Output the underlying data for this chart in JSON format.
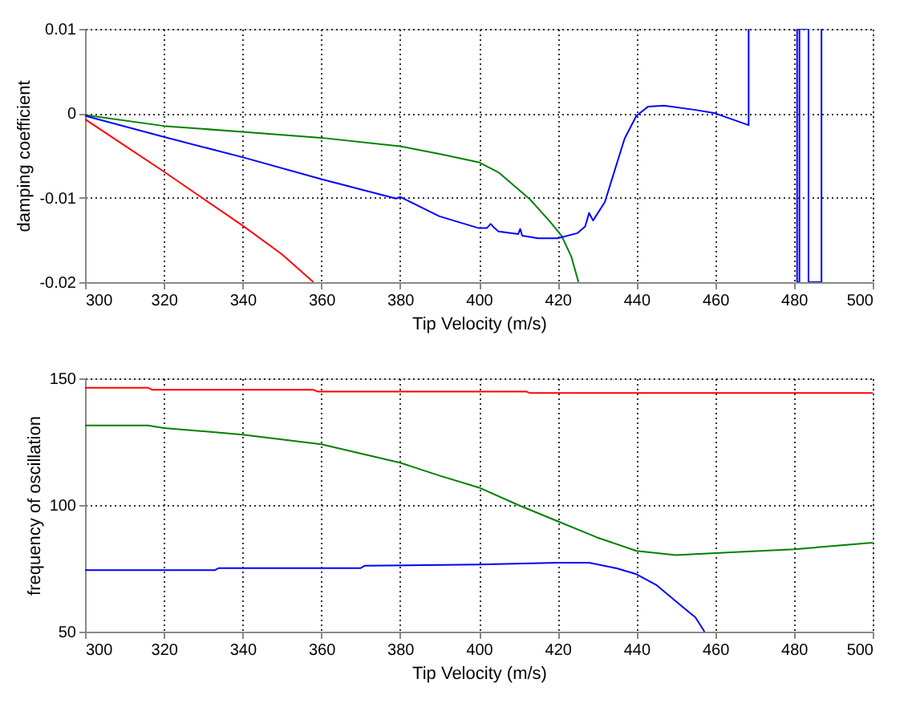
{
  "chart_data": [
    {
      "type": "line",
      "xlabel": "Tip Velocity (m/s)",
      "ylabel": "damping coefficient",
      "xlim": [
        300,
        500
      ],
      "xticks": [
        300,
        320,
        340,
        360,
        380,
        400,
        420,
        440,
        460,
        480,
        500
      ],
      "ylim": [
        -0.02,
        0.01
      ],
      "yticks": [
        -0.02,
        -0.01,
        0,
        0.01
      ],
      "grid": true,
      "legend": false,
      "marker": "none",
      "line_style": "solid",
      "series": [
        {
          "color": "#ff0000",
          "x": [
            300,
            310,
            320,
            330,
            340,
            350,
            358
          ],
          "values": [
            -0.0007,
            -0.0038,
            -0.0069,
            -0.0101,
            -0.0133,
            -0.0167,
            -0.02
          ]
        },
        {
          "color": "#008000",
          "x": [
            300,
            320,
            340,
            360,
            380,
            390,
            400,
            405,
            413,
            418,
            421,
            423.5,
            425.3
          ],
          "values": [
            -0.0002,
            -0.0015,
            -0.0022,
            -0.0029,
            -0.0039,
            -0.0048,
            -0.0058,
            -0.007,
            -0.0102,
            -0.0128,
            -0.0145,
            -0.017,
            -0.02
          ]
        },
        {
          "color": "#0000ff",
          "x": [
            300,
            320,
            340,
            360,
            379,
            380,
            390,
            400,
            402,
            403,
            404,
            405,
            410,
            410.5,
            411,
            415,
            420,
            425,
            427,
            428,
            429,
            432,
            435,
            437,
            440,
            443,
            447,
            455,
            460,
            468.5,
            468.5,
            469,
            480.8,
            480.8,
            481.4,
            481.4,
            483.7,
            483.7,
            487,
            487
          ],
          "values": [
            -0.0003,
            -0.0028,
            -0.0052,
            -0.0078,
            -0.0101,
            -0.0099,
            -0.0122,
            -0.0136,
            -0.0136,
            -0.0131,
            -0.0136,
            -0.014,
            -0.0143,
            -0.0137,
            -0.0145,
            -0.0148,
            -0.0148,
            -0.0142,
            -0.0134,
            -0.0118,
            -0.0127,
            -0.0105,
            -0.006,
            -0.003,
            -0.0003,
            0.0008,
            0.0009,
            0.0004,
            0,
            -0.0014,
            0.01,
            null,
            0.01,
            -0.02,
            -0.02,
            0.01,
            0.01,
            -0.02,
            -0.02,
            0.01
          ]
        }
      ]
    },
    {
      "type": "line",
      "xlabel": "Tip Velocity (m/s)",
      "ylabel": "frequency of oscillation",
      "xlim": [
        300,
        500
      ],
      "xticks": [
        300,
        320,
        340,
        360,
        380,
        400,
        420,
        440,
        460,
        480,
        500
      ],
      "ylim": [
        50,
        150
      ],
      "yticks": [
        50,
        100,
        150
      ],
      "grid": true,
      "legend": false,
      "marker": "none",
      "line_style": "solid",
      "series": [
        {
          "color": "#ff0000",
          "x": [
            300,
            316,
            317,
            358,
            359,
            412,
            413,
            500
          ],
          "values": [
            146.3,
            146.3,
            145.5,
            145.5,
            144.8,
            144.8,
            144.2,
            144.2
          ]
        },
        {
          "color": "#008000",
          "x": [
            300,
            316,
            320,
            340,
            360,
            380,
            390,
            400,
            410,
            420,
            430,
            440,
            450,
            460,
            480,
            500
          ],
          "values": [
            131.4,
            131.4,
            130.4,
            127.8,
            124,
            116.7,
            111.6,
            106.9,
            100,
            93.6,
            87.2,
            81.9,
            80.2,
            81,
            82.5,
            85.1
          ]
        },
        {
          "color": "#0000ff",
          "x": [
            300,
            333,
            334,
            370,
            371,
            400,
            420,
            428,
            435,
            440,
            445,
            450,
            455,
            457.3
          ],
          "values": [
            74.3,
            74.3,
            75.1,
            75.1,
            76,
            76.5,
            77.2,
            77.2,
            75,
            72.7,
            68.5,
            62,
            55.6,
            50
          ]
        }
      ]
    }
  ]
}
